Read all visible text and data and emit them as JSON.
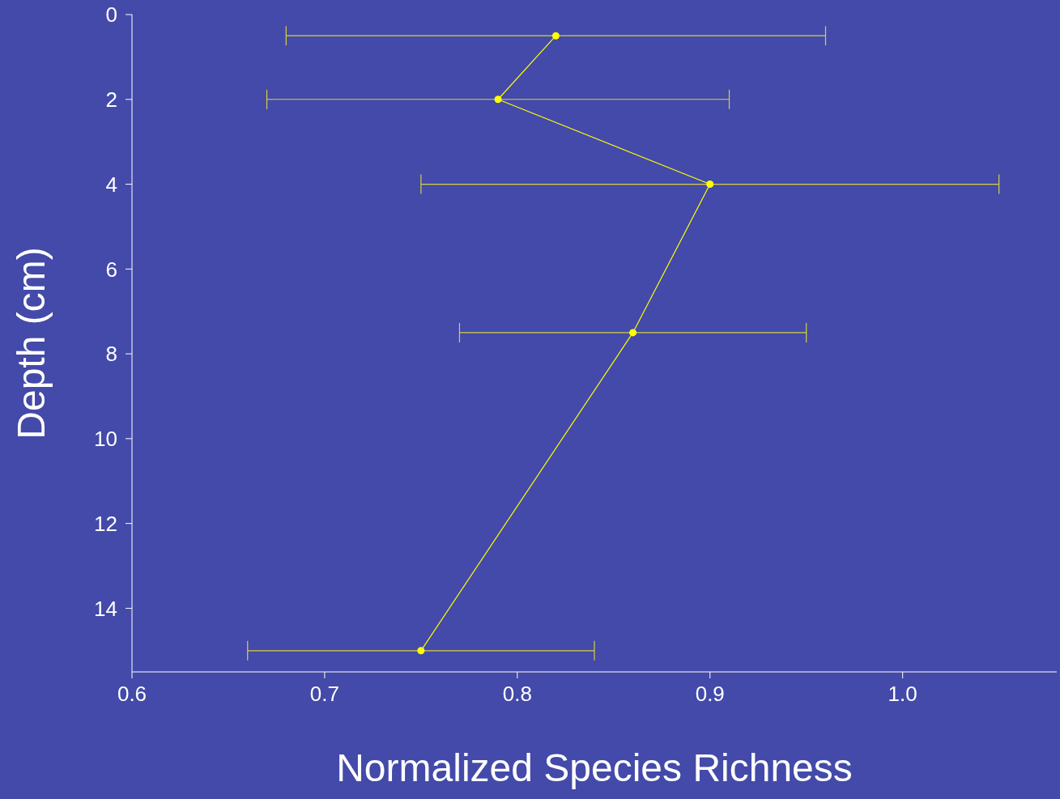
{
  "chart_data": {
    "type": "line",
    "xlabel": "Normalized Species Richness",
    "ylabel": "Depth (cm)",
    "x": [
      0.82,
      0.79,
      0.9,
      0.86,
      0.75
    ],
    "values": [
      0.5,
      2,
      4,
      7.5,
      15
    ],
    "xerrors": [
      [
        0.68,
        0.96
      ],
      [
        0.67,
        0.91
      ],
      [
        0.75,
        1.05
      ],
      [
        0.77,
        0.95
      ],
      [
        0.66,
        0.84
      ]
    ],
    "color": "#ffff00",
    "marker": "circle",
    "line_style": "solid",
    "xlim": [
      0.6,
      1.08
    ],
    "xticks": [
      0.6,
      0.7,
      0.8,
      0.9,
      {
        "value": 1.0,
        "label": "1.0"
      }
    ],
    "ylim": [
      15.5,
      0
    ],
    "yticks": [
      0,
      2,
      4,
      6,
      8,
      10,
      12,
      14
    ],
    "grid": false
  }
}
